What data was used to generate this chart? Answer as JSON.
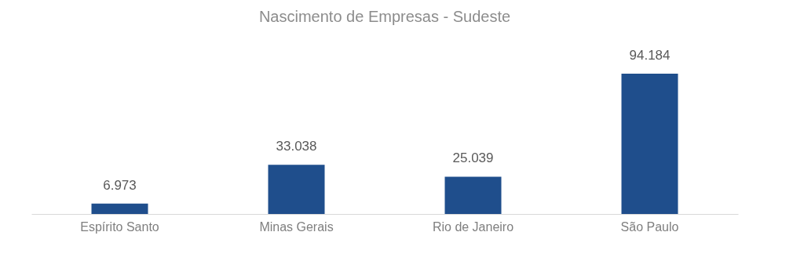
{
  "chart_data": {
    "type": "bar",
    "title": "Nascimento de Empresas - Sudeste",
    "categories": [
      "Espírito Santo",
      "Minas Gerais",
      "Rio de Janeiro",
      "São Paulo"
    ],
    "values": [
      6973,
      33038,
      25039,
      94184
    ],
    "value_labels": [
      "6.973",
      "33.038",
      "25.039",
      "94.184"
    ],
    "color": "#1f4e8c",
    "tick_labels": "x"
  }
}
